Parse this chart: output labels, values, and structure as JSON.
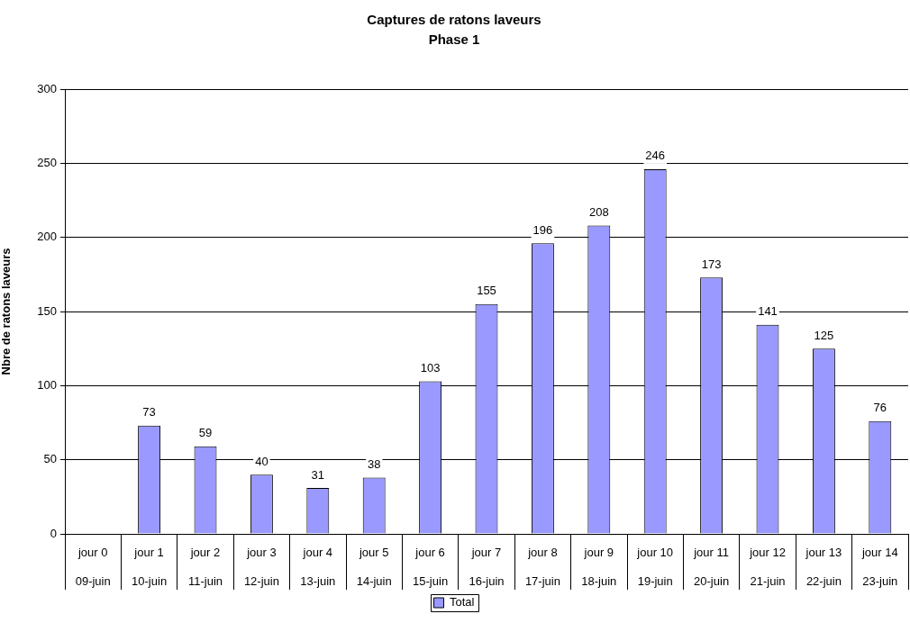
{
  "chart_data": {
    "type": "bar",
    "title": "Captures de ratons laveurs",
    "subtitle": "Phase 1",
    "ylabel": "Nbre de ratons laveurs",
    "categories": [
      "jour 0\n09-juin",
      "jour 1\n10-juin",
      "jour 2\n11-juin",
      "jour 3\n12-juin",
      "jour 4\n13-juin",
      "jour 5\n14-juin",
      "jour 6\n15-juin",
      "jour 7\n16-juin",
      "jour 8\n17-juin",
      "jour 9\n18-juin",
      "jour 10\n19-juin",
      "jour 11\n20-juin",
      "jour 12\n21-juin",
      "jour 13\n22-juin",
      "jour 14\n23-juin"
    ],
    "series": [
      {
        "name": "Total",
        "color": "#9999ff",
        "values": [
          null,
          73,
          59,
          40,
          31,
          38,
          103,
          155,
          196,
          208,
          246,
          173,
          141,
          125,
          76
        ]
      }
    ],
    "ylim": [
      0,
      300
    ],
    "yticks": [
      0,
      50,
      100,
      150,
      200,
      250,
      300
    ],
    "grid": "y",
    "legend": "bottom",
    "data_labels": true
  }
}
